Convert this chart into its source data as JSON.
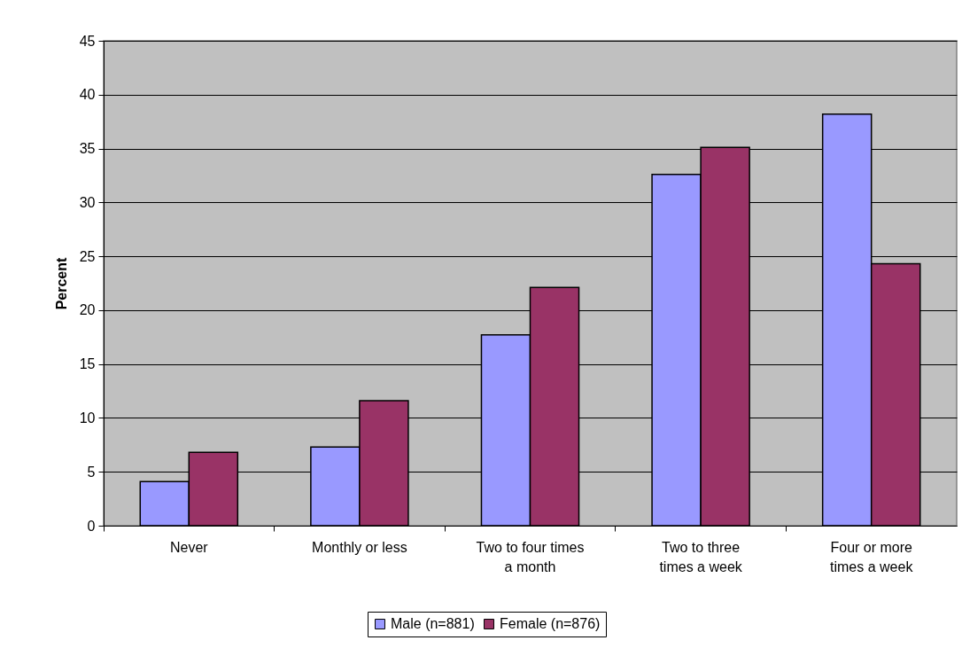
{
  "chart_data": {
    "type": "bar",
    "ylabel": "Percent",
    "categories": [
      "Never",
      "Monthly or less",
      "Two to four times a month",
      "Two to three times a week",
      "Four or more times a week"
    ],
    "series": [
      {
        "name": "Male (n=881)",
        "color": "#9999ff",
        "values": [
          4.1,
          7.3,
          17.7,
          32.6,
          38.2
        ]
      },
      {
        "name": "Female (n=876)",
        "color": "#993366",
        "values": [
          6.8,
          11.6,
          22.1,
          35.1,
          24.3
        ]
      }
    ],
    "ylim": [
      0,
      45
    ],
    "yticks": [
      0,
      5,
      10,
      15,
      20,
      25,
      30,
      35,
      40,
      45
    ],
    "grid": "y",
    "legend": "bottom"
  }
}
